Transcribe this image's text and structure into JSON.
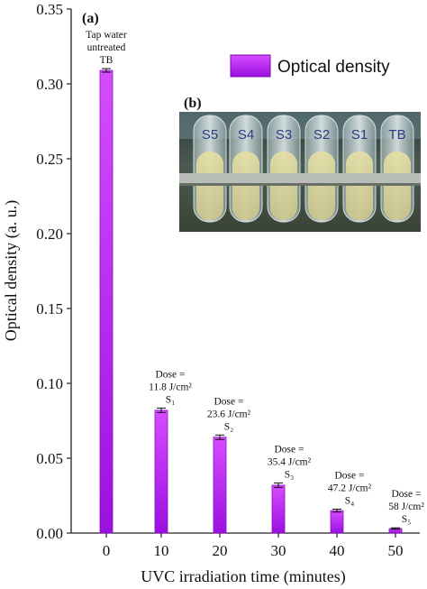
{
  "chart_data": {
    "type": "bar",
    "categories": [
      "0",
      "10",
      "20",
      "30",
      "40",
      "50"
    ],
    "series": [
      {
        "name": "Optical density",
        "values": [
          0.309,
          0.082,
          0.064,
          0.032,
          0.015,
          0.003
        ],
        "errors": [
          0.0012,
          0.0015,
          0.0015,
          0.0015,
          0.001,
          0.0005
        ],
        "color": "#b517f0"
      }
    ],
    "xlabel": "UVC irradiation time (minutes)",
    "ylabel": "Optical density (a. u.)",
    "ylim": [
      0,
      0.35
    ],
    "yticks": [
      "0.00",
      "0.05",
      "0.10",
      "0.15",
      "0.20",
      "0.25",
      "0.30",
      "0.35"
    ],
    "grid": false,
    "legend": {
      "position": "top-right",
      "label": "Optical density"
    },
    "panel_a_label": "(a)",
    "annotations": [
      {
        "lines": [
          "Tap water",
          "untreated",
          "TB"
        ]
      },
      {
        "lines": [
          "Dose =",
          "11.8 J/cm²",
          "S₁"
        ]
      },
      {
        "lines": [
          "Dose =",
          "23.6 J/cm²",
          "S₂"
        ]
      },
      {
        "lines": [
          "Dose =",
          "35.4 J/cm²",
          "S₃"
        ]
      },
      {
        "lines": [
          "Dose =",
          "47.2 J/cm²",
          "S₄"
        ]
      },
      {
        "lines": [
          "Dose =",
          "58 J/cm²",
          "S₅"
        ]
      }
    ]
  },
  "inset": {
    "panel_label": "(b)",
    "tube_labels": [
      "S5",
      "S4",
      "S3",
      "S2",
      "S1",
      "TB"
    ]
  }
}
